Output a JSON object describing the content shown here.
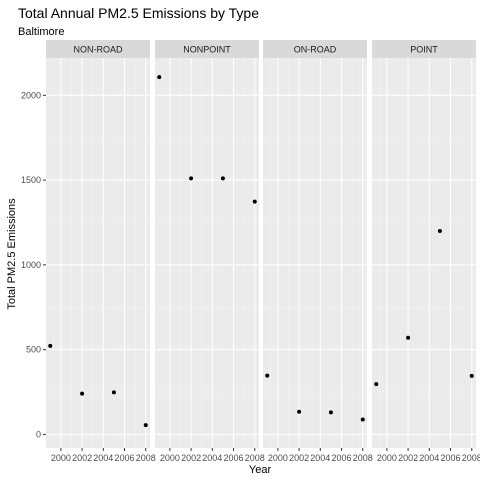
{
  "chart_data": {
    "type": "scatter",
    "title": "Total Annual PM2.5 Emissions by Type",
    "subtitle": "Baltimore",
    "xlabel": "Year",
    "ylabel": "Total PM2.5 Emissions",
    "xlim": [
      1998.6,
      2008.4
    ],
    "ylim": [
      -80,
      2220
    ],
    "x_ticks": [
      2000,
      2002,
      2004,
      2006,
      2008
    ],
    "x_tick_labels": [
      "2000",
      "2002",
      "2004",
      "2006",
      "2008"
    ],
    "y_ticks": [
      0,
      500,
      1000,
      1500,
      2000
    ],
    "y_tick_labels": [
      "0",
      "500",
      "1000",
      "1500",
      "2000"
    ],
    "grid": true,
    "background": "#ebebeb",
    "grid_major_color": "#ffffff",
    "strip_color": "#d9d9d9",
    "point_color": "#000000",
    "panels": [
      {
        "name": "NON-ROAD",
        "x": [
          1999,
          2002,
          2005,
          2008
        ],
        "y": [
          522,
          241,
          248,
          55
        ]
      },
      {
        "name": "NONPOINT",
        "x": [
          1999,
          2002,
          2005,
          2008
        ],
        "y": [
          2107,
          1510,
          1510,
          1373
        ]
      },
      {
        "name": "ON-ROAD",
        "x": [
          1999,
          2002,
          2005,
          2008
        ],
        "y": [
          347,
          134,
          130,
          88
        ]
      },
      {
        "name": "POINT",
        "x": [
          1999,
          2002,
          2005,
          2008
        ],
        "y": [
          297,
          570,
          1200,
          345
        ]
      }
    ]
  }
}
